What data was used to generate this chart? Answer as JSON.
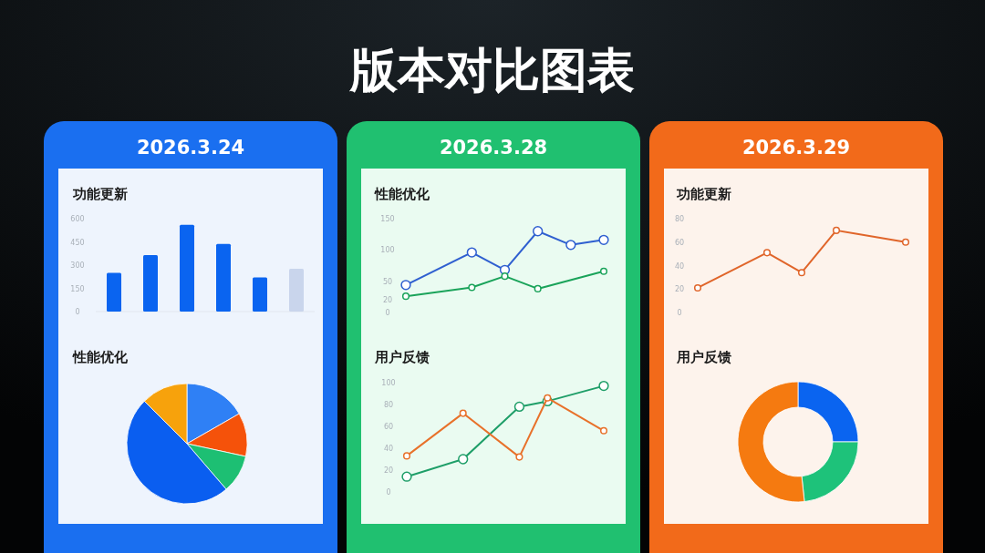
{
  "chart_data": [
    {
      "type": "bar",
      "title": "功能更新",
      "subtitle": "2026.3.24",
      "annotations": [
        "版本对比图表"
      ],
      "categories": [
        null,
        null,
        null,
        null,
        null,
        null
      ],
      "values": [
        250,
        364,
        561,
        437,
        220,
        276
      ],
      "colors": [
        "#0a64f0",
        "#0a64f0",
        "#0a64f0",
        "#0a64f0",
        "#0a64f0",
        "#c9d5ec"
      ],
      "ylim": [
        0,
        600
      ],
      "yticks": [
        0,
        150,
        300,
        450,
        600
      ]
    },
    {
      "type": "pie",
      "title": "性能优化",
      "categories": [
        null,
        null,
        null,
        null,
        null
      ],
      "values": [
        16.7,
        11.7,
        10.3,
        48.8,
        12.5
      ],
      "colors": [
        "#2f80f5",
        "#f5520a",
        "#1dbf73",
        "#0a5ef0",
        "#f7a20c"
      ]
    },
    {
      "type": "line",
      "title": "性能优化",
      "subtitle": "2026.3.28",
      "categories": [
        null,
        null,
        null,
        null,
        null,
        null,
        null
      ],
      "ylim": [
        0,
        150
      ],
      "yticks": [
        0,
        20,
        50,
        100,
        150
      ],
      "marker": "circle",
      "series": [
        {
          "color": "#2f5fd0",
          "values": [
            44,
            null,
            96,
            68,
            130,
            108,
            116
          ]
        },
        {
          "color": "#1aa35a",
          "values": [
            26,
            null,
            40,
            58,
            38,
            null,
            66
          ]
        }
      ]
    },
    {
      "type": "line",
      "title": "用户反馈",
      "categories": [
        null,
        null,
        null,
        null,
        null,
        null,
        null,
        null
      ],
      "ylim": [
        0,
        100
      ],
      "yticks": [
        0,
        20,
        40,
        60,
        80,
        100
      ],
      "marker": "circle",
      "series": [
        {
          "color": "#1e9e68",
          "values": [
            14,
            null,
            30,
            null,
            78,
            83,
            null,
            97
          ]
        },
        {
          "color": "#e8712a",
          "values": [
            33,
            null,
            72,
            null,
            32,
            86,
            null,
            56
          ]
        }
      ]
    },
    {
      "type": "line",
      "title": "功能更新",
      "subtitle": "2026.3.29",
      "categories": [
        null,
        null,
        null,
        null,
        null,
        null,
        null
      ],
      "ylim": [
        0,
        80
      ],
      "yticks": [
        0,
        20,
        40,
        60,
        80
      ],
      "marker": "circle",
      "series": [
        {
          "color": "#e0652a",
          "values": [
            21,
            null,
            51,
            34,
            70,
            null,
            60
          ]
        }
      ]
    },
    {
      "type": "donut",
      "title": "用户反馈",
      "categories": [
        null,
        null,
        null
      ],
      "values": [
        25,
        23.3,
        51.7
      ],
      "colors": [
        "#0a64f0",
        "#1ec27a",
        "#f57a10"
      ]
    }
  ]
}
